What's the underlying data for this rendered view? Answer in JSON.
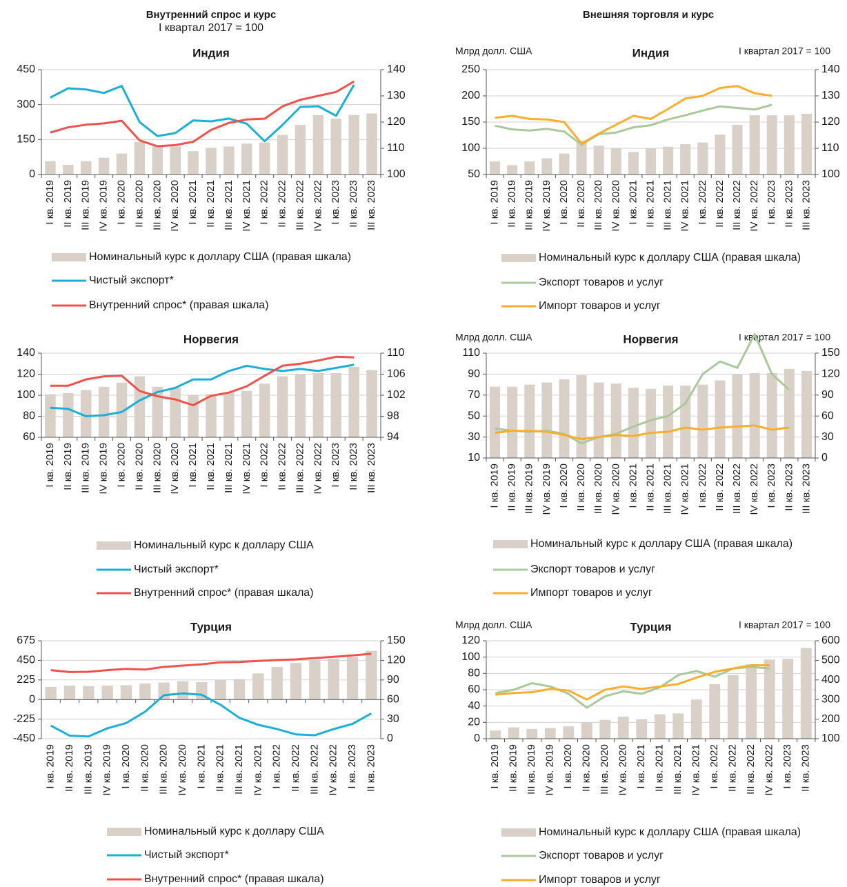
{
  "headers": [
    {
      "title": "Внутренний спрос и курс",
      "subtitle": "I квартал 2017 = 100"
    },
    {
      "title": "Внешняя торговля и курс"
    }
  ],
  "chart_data": [
    {
      "type": "bar-line",
      "title": "Индия",
      "categories": [
        "I кв. 2019",
        "II кв. 2019",
        "III кв. 2019",
        "IV кв. 2019",
        "I кв. 2020",
        "II кв. 2020",
        "III кв. 2020",
        "IV кв. 2020",
        "I кв. 2021",
        "II кв. 2021",
        "III кв. 2021",
        "IV кв. 2021",
        "I кв. 2022",
        "II кв. 2022",
        "III кв. 2022",
        "IV кв. 2022",
        "I кв. 2023",
        "II кв. 2023",
        "III кв. 2023"
      ],
      "ylim": [
        0,
        450
      ],
      "yticks": [
        0,
        150,
        300,
        450
      ],
      "y2lim": [
        100,
        140
      ],
      "y2ticks": [
        100,
        110,
        120,
        130,
        140
      ],
      "grid": true,
      "series": [
        {
          "name": "Номинальный курс к доллару США (правая шкала)",
          "mark": "bar",
          "axis": "y2",
          "color": "#d9d1c7",
          "values": [
            105.1,
            103.7,
            105.1,
            106.4,
            108,
            112.4,
            111.1,
            110.7,
            108.9,
            110.2,
            110.7,
            111.8,
            112.2,
            115.1,
            118.9,
            122.7,
            121.3,
            122.7,
            123.3
          ]
        },
        {
          "name": "Чистый экспорт*",
          "mark": "line",
          "axis": "y",
          "color": "#1aafd6",
          "values": [
            330,
            370,
            365,
            350,
            380,
            225,
            165,
            178,
            232,
            228,
            240,
            218,
            143,
            213,
            290,
            293,
            252,
            385,
            null
          ]
        },
        {
          "name": "Внутренний спрос* (правая шкала)",
          "mark": "line",
          "axis": "y2",
          "color": "#f0514a",
          "values": [
            116,
            118,
            119,
            119.5,
            120.5,
            113,
            110.8,
            111.2,
            112.5,
            117,
            119.7,
            121,
            121.3,
            126,
            128.5,
            130,
            131.5,
            135.5,
            null
          ]
        }
      ]
    },
    {
      "type": "bar-line",
      "title": "Индия",
      "y_label": "Млрд долл. США",
      "y2_label": "I квартал 2017 = 100",
      "categories": [
        "I кв. 2019",
        "II кв. 2019",
        "III кв. 2019",
        "IV кв. 2019",
        "I кв. 2020",
        "II кв. 2020",
        "III кв. 2020",
        "IV кв. 2020",
        "I кв. 2021",
        "II кв. 2021",
        "III кв. 2021",
        "IV кв. 2021",
        "I кв. 2022",
        "II кв. 2022",
        "III кв. 2022",
        "IV кв. 2022",
        "I кв. 2023",
        "II кв. 2023",
        "III кв. 2023"
      ],
      "ylim": [
        50,
        250
      ],
      "yticks": [
        50,
        100,
        150,
        200,
        250
      ],
      "y2lim": [
        100,
        140
      ],
      "y2ticks": [
        100,
        110,
        120,
        130,
        140
      ],
      "grid": true,
      "series": [
        {
          "name": "Номинальный курс к доллару США (правая шкала)",
          "mark": "bar",
          "axis": "y2",
          "color": "#d9d1c7",
          "values": [
            105,
            103.6,
            105,
            106.2,
            108,
            113,
            111,
            110,
            108.6,
            110,
            110.6,
            111.6,
            112.2,
            115.2,
            119,
            122.6,
            122.6,
            122.6,
            123.2
          ]
        },
        {
          "name": "Экспорт товаров и услуг",
          "mark": "line",
          "axis": "y",
          "color": "#a9c99a",
          "values": [
            143,
            136,
            134,
            137,
            132,
            107,
            127,
            130,
            140,
            144,
            155,
            163,
            172,
            180,
            177,
            174,
            183,
            null,
            null
          ]
        },
        {
          "name": "Импорт товаров и услуг",
          "mark": "line",
          "axis": "y",
          "color": "#fbae2c",
          "values": [
            158,
            162,
            156,
            155,
            150,
            109,
            128,
            145,
            162,
            156,
            175,
            195,
            200,
            215,
            219,
            205,
            200,
            null,
            null
          ]
        }
      ]
    },
    {
      "type": "bar-line",
      "title": "Норвегия",
      "categories": [
        "I кв. 2019",
        "II кв. 2019",
        "III кв. 2019",
        "IV кв. 2019",
        "I кв. 2020",
        "II кв. 2020",
        "III кв. 2020",
        "IV кв. 2020",
        "I кв. 2021",
        "II кв. 2021",
        "III кв. 2021",
        "IV кв. 2021",
        "I кв. 2022",
        "II кв. 2022",
        "III кв. 2022",
        "IV кв. 2022",
        "I кв. 2023",
        "II кв. 2023",
        "III кв. 2023"
      ],
      "ylim": [
        60,
        140
      ],
      "yticks": [
        60,
        80,
        100,
        120,
        140
      ],
      "y2lim": [
        94,
        110
      ],
      "y2ticks": [
        94,
        98,
        102,
        106,
        110
      ],
      "grid": true,
      "series": [
        {
          "name": "Номинальный курс к доллару США",
          "mark": "bar",
          "axis": "y",
          "color": "#d9d1c7",
          "values": [
            101,
            102,
            105,
            108,
            112,
            118,
            108,
            107,
            100,
            101,
            103,
            104,
            111,
            118,
            120,
            121,
            121,
            127,
            124
          ]
        },
        {
          "name": "Чистый экспорт*",
          "mark": "line",
          "axis": "y",
          "color": "#1aafd6",
          "values": [
            88,
            87,
            80,
            81,
            84,
            95,
            103,
            107,
            115,
            115,
            123,
            128,
            125,
            123,
            125,
            123,
            126,
            129,
            null
          ]
        },
        {
          "name": "Внутренний спрос* (правая шкала)",
          "mark": "line",
          "axis": "y2",
          "color": "#f0514a",
          "values": [
            103.8,
            103.8,
            105,
            105.6,
            105.7,
            102.8,
            101.8,
            101.2,
            100.1,
            101.9,
            102.5,
            103.7,
            105.7,
            107.6,
            108,
            108.6,
            109.3,
            109.2,
            null
          ]
        }
      ]
    },
    {
      "type": "bar-line",
      "title": "Норвегия",
      "y_label": "Млрд долл. США",
      "y2_label": "I квартал 2017 = 100",
      "categories": [
        "I кв. 2019",
        "II кв. 2019",
        "III кв. 2019",
        "IV кв. 2019",
        "I кв. 2020",
        "II кв. 2020",
        "III кв. 2020",
        "IV кв. 2020",
        "I кв. 2021",
        "II кв. 2021",
        "III кв. 2021",
        "IV кв. 2021",
        "I кв. 2022",
        "II кв. 2022",
        "III кв. 2022",
        "IV кв. 2022",
        "I кв. 2023",
        "II кв. 2023",
        "III кв. 2023"
      ],
      "ylim": [
        10,
        110
      ],
      "yticks": [
        10,
        30,
        50,
        70,
        90,
        110
      ],
      "y2lim": [
        0,
        150
      ],
      "y2ticks": [
        0,
        30,
        60,
        90,
        120,
        150
      ],
      "grid": true,
      "series": [
        {
          "name": "Номинальный курс к доллару США (правая шкала)",
          "mark": "bar",
          "axis": "y2",
          "color": "#d9d1c7",
          "values": [
            102,
            102,
            105,
            108,
            112.5,
            118.5,
            108,
            106.5,
            100.5,
            99,
            103.5,
            103.5,
            105,
            111,
            120,
            121.5,
            121.5,
            127.5,
            124.5
          ]
        },
        {
          "name": "Экспорт товаров и услуг",
          "mark": "line",
          "axis": "y",
          "color": "#a9c99a",
          "values": [
            38,
            36,
            35,
            36,
            33,
            24,
            30,
            33,
            40,
            46,
            50,
            62,
            90,
            102,
            96,
            128,
            90,
            75,
            null
          ]
        },
        {
          "name": "Импорт товаров и услуг",
          "mark": "line",
          "axis": "y",
          "color": "#fbae2c",
          "values": [
            34,
            36,
            36,
            35,
            32,
            28,
            30,
            32,
            31,
            34,
            35,
            39,
            37,
            39,
            40,
            41,
            37,
            39,
            null
          ]
        }
      ]
    },
    {
      "type": "bar-line",
      "title": "Турция",
      "categories": [
        "I кв. 2019",
        "II кв. 2019",
        "III кв. 2019",
        "IV кв. 2019",
        "I кв. 2020",
        "II кв. 2020",
        "III кв. 2020",
        "IV кв. 2020",
        "I кв. 2021",
        "II кв. 2021",
        "III кв. 2021",
        "IV кв. 2021",
        "I кв. 2022",
        "II кв. 2022",
        "III кв. 2022",
        "IV кв. 2022",
        "I кв. 2023",
        "II кв. 2023"
      ],
      "ylim": [
        -450,
        675
      ],
      "yticks": [
        -450,
        -225,
        0,
        225,
        450,
        675
      ],
      "y2lim": [
        0,
        150
      ],
      "y2ticks": [
        0,
        30,
        60,
        90,
        120,
        150
      ],
      "grid": true,
      "series": [
        {
          "name": "Номинальный курс к доллару США",
          "mark": "bar",
          "axis": "y",
          "color": "#d9d1c7",
          "values": [
            145,
            160,
            155,
            160,
            165,
            185,
            195,
            210,
            200,
            225,
            235,
            300,
            375,
            420,
            455,
            470,
            490,
            560
          ]
        },
        {
          "name": "Чистый экспорт*",
          "mark": "line",
          "axis": "y",
          "color": "#1aafd6",
          "values": [
            -300,
            -415,
            -425,
            -330,
            -270,
            -140,
            50,
            70,
            55,
            -60,
            -210,
            -290,
            -340,
            -400,
            -410,
            -340,
            -280,
            -160
          ]
        },
        {
          "name": "Внутренний спрос* (правая шкала)",
          "mark": "line",
          "axis": "y2",
          "color": "#f0514a",
          "values": [
            105,
            102,
            102.5,
            105,
            107,
            106,
            110,
            112,
            114,
            117,
            117.5,
            119,
            120.5,
            121.5,
            123.5,
            125.5,
            127.5,
            130
          ]
        }
      ]
    },
    {
      "type": "bar-line",
      "title": "Турция",
      "y_label": "Млрд долл. США",
      "y2_label": "I квартал 2017 = 100",
      "categories": [
        "I кв. 2019",
        "II кв. 2019",
        "III кв. 2019",
        "IV кв. 2019",
        "I кв. 2020",
        "II кв. 2020",
        "III кв. 2020",
        "IV кв. 2020",
        "I кв. 2021",
        "II кв. 2021",
        "III кв. 2021",
        "IV кв. 2021",
        "I кв. 2022",
        "II кв. 2022",
        "III кв. 2022",
        "IV кв. 2022",
        "I кв. 2023",
        "II кв. 2023"
      ],
      "ylim": [
        0,
        120
      ],
      "yticks": [
        0,
        20,
        40,
        60,
        80,
        100,
        120
      ],
      "y2lim": [
        100,
        600
      ],
      "y2ticks": [
        100,
        200,
        300,
        400,
        500,
        600
      ],
      "grid": true,
      "series": [
        {
          "name": "Номинальный курс к доллару США (правая шкала)",
          "mark": "bar",
          "axis": "y2",
          "color": "#d9d1c7",
          "values": [
            142,
            158,
            150,
            154,
            163,
            183,
            196,
            213,
            200,
            225,
            229,
            300,
            379,
            425,
            479,
            504,
            508,
            563
          ]
        },
        {
          "name": "Экспорт товаров и услуг",
          "mark": "line",
          "axis": "y",
          "color": "#a9c99a",
          "values": [
            56,
            60,
            68,
            64,
            55,
            38,
            52,
            58,
            55,
            63,
            78,
            83,
            76,
            86,
            88,
            86,
            null,
            null
          ]
        },
        {
          "name": "Импорт товаров и услуг",
          "mark": "line",
          "axis": "y",
          "color": "#fbae2c",
          "values": [
            54,
            56,
            57,
            61,
            59,
            48,
            60,
            64,
            61,
            64,
            67,
            75,
            82,
            86,
            90,
            90,
            null,
            null
          ]
        }
      ]
    }
  ]
}
